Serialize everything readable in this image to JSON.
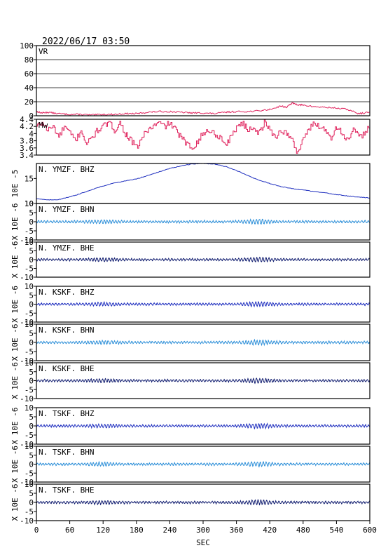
{
  "header": {
    "datetime": "2022/06/17 03:50"
  },
  "colors": {
    "vr": "#e0245e",
    "mw": "#e0245e",
    "z": "#1f2fbf",
    "n": "#2b8ed8",
    "e": "#0e1a6e",
    "frame": "#000000",
    "grid": "#000000"
  },
  "chart_data": {
    "type": "line",
    "xlabel": "SEC",
    "xlim": [
      0,
      600
    ],
    "xticks": [
      0,
      60,
      120,
      180,
      240,
      300,
      360,
      420,
      480,
      540,
      600
    ],
    "panels": [
      {
        "id": "vr",
        "title": "VR",
        "ylabel": "",
        "ylim": [
          0,
          100
        ],
        "yticks": [
          0,
          20,
          40,
          60,
          80,
          100
        ],
        "grid": true,
        "color_key": "vr",
        "kind": "vr"
      },
      {
        "id": "mw",
        "title": "Mw",
        "ylabel": "",
        "ylim": [
          3.4,
          4.4
        ],
        "yticks": [
          3.4,
          3.6,
          3.8,
          4.0,
          4.2,
          4.4
        ],
        "grid": false,
        "color_key": "mw",
        "kind": "mw"
      },
      {
        "id": "ymzf-bhz",
        "title": "N. YMZF. BHZ",
        "ylabel": "10E -5",
        "ylim": [
          10,
          18
        ],
        "yticks": [
          10,
          15
        ],
        "grid": false,
        "color_key": "z",
        "kind": "trend"
      },
      {
        "id": "ymzf-bhn",
        "title": "N. YMZF. BHN",
        "ylabel": "X 10E -6",
        "ylim": [
          -10,
          10
        ],
        "yticks": [
          -10,
          -5,
          0,
          5,
          10
        ],
        "grid": false,
        "color_key": "n",
        "kind": "noise"
      },
      {
        "id": "ymzf-bhe",
        "title": "N. YMZF. BHE",
        "ylabel": "X 10E -6",
        "ylim": [
          -10,
          10
        ],
        "yticks": [
          -10,
          -5,
          0,
          5,
          10
        ],
        "grid": false,
        "color_key": "e",
        "kind": "noise"
      },
      {
        "id": "kskf-bhz",
        "title": "N. KSKF. BHZ",
        "ylabel": "X 10E -6",
        "ylim": [
          -10,
          10
        ],
        "yticks": [
          -10,
          -5,
          0,
          5,
          10
        ],
        "grid": false,
        "color_key": "z",
        "kind": "noise"
      },
      {
        "id": "kskf-bhn",
        "title": "N. KSKF. BHN",
        "ylabel": "X 10E -6",
        "ylim": [
          -10,
          10
        ],
        "yticks": [
          -10,
          -5,
          0,
          5,
          10
        ],
        "grid": false,
        "color_key": "n",
        "kind": "noise"
      },
      {
        "id": "kskf-bhe",
        "title": "N. KSKF. BHE",
        "ylabel": "X 10E -6",
        "ylim": [
          -10,
          10
        ],
        "yticks": [
          -10,
          -5,
          0,
          5,
          10
        ],
        "grid": false,
        "color_key": "e",
        "kind": "noise"
      },
      {
        "id": "tskf-bhz",
        "title": "N. TSKF. BHZ",
        "ylabel": "X 10E -6",
        "ylim": [
          -10,
          10
        ],
        "yticks": [
          -10,
          -5,
          0,
          5,
          10
        ],
        "grid": false,
        "color_key": "z",
        "kind": "noise"
      },
      {
        "id": "tskf-bhn",
        "title": "N. TSKF. BHN",
        "ylabel": "X 10E -6",
        "ylim": [
          -10,
          10
        ],
        "yticks": [
          -10,
          -5,
          0,
          5,
          10
        ],
        "grid": false,
        "color_key": "n",
        "kind": "noise"
      },
      {
        "id": "tskf-bhe",
        "title": "N. TSKF. BHE",
        "ylabel": "X 10E -6",
        "ylim": [
          -10,
          10
        ],
        "yticks": [
          -10,
          -5,
          0,
          5,
          10
        ],
        "grid": false,
        "color_key": "e",
        "kind": "noise"
      }
    ],
    "series": {
      "vr": {
        "x": [
          0,
          10,
          20,
          40,
          60,
          80,
          100,
          120,
          140,
          160,
          180,
          200,
          220,
          240,
          260,
          280,
          300,
          320,
          340,
          360,
          380,
          400,
          420,
          440,
          450,
          460,
          470,
          480,
          500,
          520,
          540,
          560,
          580,
          600
        ],
        "y": [
          6,
          4,
          5,
          3,
          2,
          2,
          1,
          2,
          2,
          3,
          3,
          5,
          6,
          6,
          5,
          4,
          4,
          3,
          5,
          6,
          6,
          7,
          9,
          14,
          12,
          18,
          16,
          15,
          13,
          12,
          11,
          9,
          3,
          5
        ]
      },
      "mw": {
        "x": [
          0,
          10,
          20,
          30,
          40,
          50,
          60,
          70,
          80,
          90,
          100,
          110,
          120,
          130,
          140,
          150,
          160,
          170,
          180,
          190,
          200,
          210,
          220,
          230,
          240,
          250,
          260,
          270,
          280,
          290,
          300,
          310,
          320,
          330,
          340,
          350,
          360,
          370,
          380,
          390,
          400,
          410,
          420,
          430,
          440,
          450,
          460,
          470,
          480,
          490,
          500,
          510,
          520,
          530,
          540,
          550,
          560,
          570,
          580,
          590,
          600
        ],
        "y": [
          4.2,
          4.3,
          4.1,
          4.2,
          3.9,
          4.2,
          4.0,
          3.8,
          4.1,
          3.7,
          3.9,
          4.1,
          4.2,
          4.3,
          4.1,
          4.3,
          4.0,
          3.8,
          3.6,
          3.9,
          4.1,
          4.2,
          4.3,
          4.2,
          4.3,
          4.1,
          3.9,
          3.7,
          3.6,
          3.8,
          4.0,
          4.1,
          4.0,
          3.9,
          3.7,
          3.9,
          4.2,
          4.3,
          4.1,
          4.2,
          4.0,
          4.3,
          4.1,
          3.9,
          4.1,
          4.0,
          3.8,
          3.45,
          3.9,
          4.1,
          4.3,
          4.2,
          4.1,
          3.9,
          4.2,
          4.0,
          3.8,
          4.1,
          3.9,
          4.0,
          4.3
        ]
      },
      "ymzf-bhz": {
        "x": [
          0,
          20,
          40,
          60,
          80,
          100,
          120,
          140,
          160,
          180,
          200,
          220,
          240,
          260,
          280,
          300,
          320,
          340,
          360,
          380,
          400,
          420,
          440,
          460,
          480,
          500,
          520,
          540,
          560,
          580,
          600
        ],
        "y": [
          11.0,
          10.7,
          10.8,
          11.3,
          12.0,
          12.8,
          13.5,
          14.1,
          14.5,
          14.9,
          15.6,
          16.3,
          17.0,
          17.5,
          17.9,
          18.0,
          17.9,
          17.4,
          16.6,
          15.6,
          14.7,
          14.0,
          13.4,
          13.0,
          12.7,
          12.4,
          12.1,
          11.8,
          11.5,
          11.3,
          11.1
        ]
      }
    }
  }
}
